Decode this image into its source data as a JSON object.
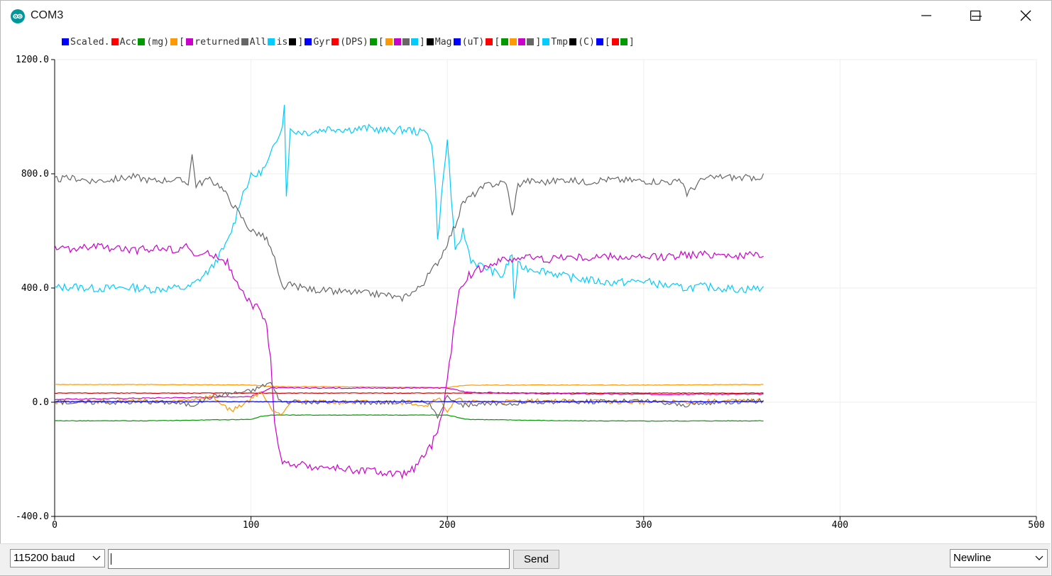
{
  "window": {
    "title": "COM3",
    "controls": [
      "minimize-icon",
      "maximize-icon",
      "close-icon"
    ]
  },
  "legend": [
    {
      "label": "Scaled.",
      "color": "#0000ff"
    },
    {
      "label": "Acc",
      "color": "#ff0000"
    },
    {
      "label": "(mg)",
      "color": "#009900"
    },
    {
      "label": "[",
      "color": "#ff9900"
    },
    {
      "label": "returned",
      "color": "#cc00cc"
    },
    {
      "label": "All",
      "color": "#666666"
    },
    {
      "label": "is",
      "color": "#00ccff"
    },
    {
      "label": "]",
      "color": "#000000"
    },
    {
      "label": "Gyr",
      "color": "#0000ff"
    },
    {
      "label": "(DPS)",
      "color": "#ff0000"
    },
    {
      "label": "[",
      "color": "#009900"
    },
    {
      "label": "",
      "color": "#ff9900"
    },
    {
      "label": "",
      "color": "#cc00cc"
    },
    {
      "label": "",
      "color": "#666666"
    },
    {
      "label": "]",
      "color": "#00ccff"
    },
    {
      "label": "Mag",
      "color": "#000000"
    },
    {
      "label": "(uT)",
      "color": "#0000ff"
    },
    {
      "label": "[",
      "color": "#ff0000"
    },
    {
      "label": "",
      "color": "#009900"
    },
    {
      "label": "",
      "color": "#ff9900"
    },
    {
      "label": "",
      "color": "#cc00cc"
    },
    {
      "label": "]",
      "color": "#666666"
    },
    {
      "label": "Tmp",
      "color": "#00ccff"
    },
    {
      "label": "(C)",
      "color": "#000000"
    },
    {
      "label": "[",
      "color": "#0000ff"
    },
    {
      "label": "",
      "color": "#ff0000"
    },
    {
      "label": "]",
      "color": "#009900"
    }
  ],
  "chart_data": {
    "type": "line",
    "xlim": [
      0,
      500
    ],
    "ylim": [
      -400,
      1200
    ],
    "xticks": [
      "0",
      "100",
      "200",
      "300",
      "400",
      "500"
    ],
    "yticks": [
      "-400.0",
      "0.0",
      "400.0",
      "800.0",
      "1200.0"
    ],
    "grid": true,
    "series": [
      {
        "color": "#00ccff",
        "x": [
          0,
          10,
          20,
          30,
          40,
          50,
          60,
          68,
          72,
          80,
          88,
          92,
          95,
          100,
          104,
          108,
          112,
          116,
          117,
          118,
          120,
          130,
          140,
          150,
          160,
          170,
          180,
          186,
          190,
          192,
          194,
          195,
          197,
          200,
          204,
          208,
          212,
          216,
          220,
          228,
          233,
          234,
          236,
          240,
          250,
          260,
          270,
          280,
          290,
          300,
          310,
          320,
          330,
          340,
          350,
          360
        ],
        "y": [
          400,
          405,
          398,
          400,
          402,
          395,
          400,
          400,
          420,
          470,
          560,
          640,
          720,
          790,
          800,
          830,
          900,
          975,
          1040,
          730,
          950,
          945,
          960,
          955,
          960,
          950,
          955,
          945,
          950,
          900,
          760,
          560,
          720,
          920,
          520,
          600,
          500,
          480,
          470,
          440,
          520,
          360,
          480,
          470,
          460,
          440,
          430,
          420,
          420,
          425,
          410,
          400,
          405,
          400,
          395,
          400
        ]
      },
      {
        "color": "#666666",
        "x": [
          0,
          10,
          20,
          30,
          40,
          50,
          60,
          68,
          70,
          72,
          78,
          84,
          88,
          92,
          96,
          100,
          104,
          108,
          112,
          114,
          116,
          120,
          130,
          140,
          150,
          160,
          170,
          176,
          180,
          184,
          188,
          192,
          196,
          200,
          204,
          208,
          212,
          216,
          220,
          230,
          233,
          236,
          240,
          250,
          260,
          270,
          280,
          300,
          320,
          322,
          330,
          340,
          350,
          360
        ],
        "y": [
          780,
          785,
          775,
          780,
          790,
          775,
          780,
          770,
          865,
          760,
          780,
          760,
          720,
          680,
          640,
          600,
          590,
          570,
          500,
          440,
          400,
          410,
          395,
          390,
          385,
          380,
          375,
          360,
          380,
          390,
          420,
          460,
          500,
          560,
          620,
          700,
          720,
          740,
          760,
          770,
          650,
          760,
          775,
          770,
          780,
          770,
          780,
          775,
          770,
          730,
          780,
          790,
          785,
          790
        ]
      },
      {
        "color": "#cc00cc",
        "x": [
          0,
          10,
          20,
          30,
          40,
          50,
          60,
          68,
          72,
          80,
          88,
          92,
          96,
          100,
          104,
          106,
          108,
          110,
          112,
          114,
          116,
          118,
          120,
          130,
          140,
          150,
          160,
          170,
          176,
          180,
          184,
          188,
          192,
          196,
          198,
          200,
          202,
          204,
          206,
          210,
          220,
          230,
          240,
          250,
          260,
          270,
          280,
          300,
          320,
          340,
          350,
          360
        ],
        "y": [
          540,
          535,
          545,
          540,
          530,
          540,
          535,
          545,
          510,
          520,
          490,
          420,
          380,
          340,
          330,
          300,
          260,
          150,
          -60,
          -160,
          -210,
          -220,
          -215,
          -225,
          -230,
          -235,
          -240,
          -250,
          -255,
          -245,
          -230,
          -190,
          -150,
          -80,
          -20,
          80,
          180,
          300,
          380,
          440,
          480,
          500,
          510,
          500,
          510,
          505,
          510,
          505,
          515,
          520,
          510,
          520
        ]
      },
      {
        "color": "#ff9900",
        "x": [
          0,
          50,
          100,
          110,
          200,
          210,
          300,
          360
        ],
        "y": [
          62,
          62,
          60,
          55,
          52,
          60,
          60,
          62
        ]
      },
      {
        "color": "#cc0000",
        "x": [
          0,
          50,
          100,
          200,
          300,
          360
        ],
        "y": [
          32,
          32,
          32,
          32,
          32,
          32
        ]
      },
      {
        "color": "#cc00cc",
        "x": [
          0,
          100,
          110,
          200,
          210,
          250,
          300,
          360
        ],
        "y": [
          10,
          20,
          50,
          50,
          35,
          30,
          28,
          28
        ]
      },
      {
        "color": "#009900",
        "x": [
          0,
          50,
          100,
          105,
          110,
          200,
          210,
          260,
          300,
          360
        ],
        "y": [
          -65,
          -65,
          -60,
          -50,
          -45,
          -45,
          -60,
          -65,
          -66,
          -65
        ]
      },
      {
        "color": "#ff9900",
        "x": [
          0,
          40,
          60,
          80,
          90,
          100,
          105,
          110,
          115,
          120,
          180,
          190,
          195,
          200,
          205,
          210,
          250,
          300,
          360
        ],
        "y": [
          0,
          5,
          0,
          20,
          -30,
          10,
          40,
          -20,
          -40,
          0,
          0,
          -10,
          20,
          -30,
          10,
          0,
          5,
          0,
          5
        ]
      },
      {
        "color": "#666666",
        "x": [
          0,
          60,
          70,
          80,
          88,
          100,
          110,
          115,
          190,
          195,
          200,
          205,
          250,
          300,
          320,
          340,
          360
        ],
        "y": [
          0,
          0,
          -10,
          20,
          30,
          40,
          70,
          0,
          0,
          -50,
          20,
          -10,
          0,
          5,
          -10,
          0,
          5
        ]
      },
      {
        "color": "#0000ff",
        "x": [
          0,
          100,
          200,
          300,
          360
        ],
        "y": [
          2,
          2,
          2,
          2,
          2
        ]
      }
    ]
  },
  "bottom": {
    "baud": "115200 baud",
    "input_value": "",
    "send": "Send",
    "line_ending": "Newline"
  }
}
